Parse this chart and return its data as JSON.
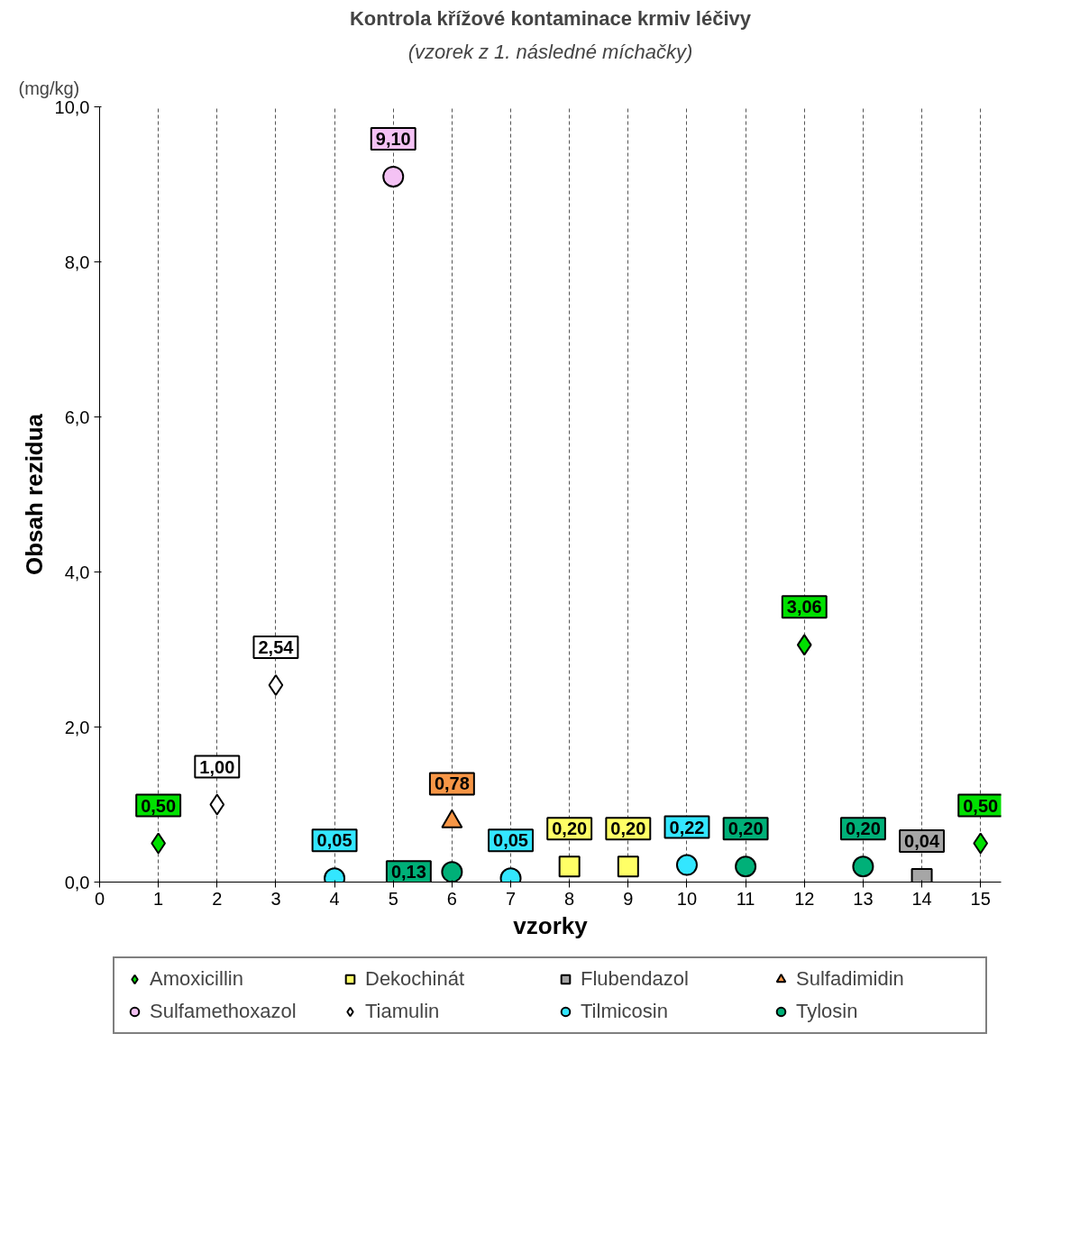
{
  "chart_data": {
    "type": "scatter",
    "title": "Kontrola křížové kontaminace krmiv léčivy",
    "subtitle": "(vzorek z 1. následné míchačky)",
    "xlabel": "vzorky",
    "ylabel": "Obsah rezidua",
    "annotations": [
      "(mg/kg)"
    ],
    "xlim": [
      0,
      15.35
    ],
    "xticks": [
      0,
      1,
      2,
      3,
      4,
      5,
      6,
      7,
      8,
      9,
      10,
      11,
      12,
      13,
      14,
      15
    ],
    "ylim": [
      0,
      10
    ],
    "yticks": [
      {
        "value": 0,
        "label": "0,0"
      },
      {
        "value": 2,
        "label": "2,0"
      },
      {
        "value": 4,
        "label": "4,0"
      },
      {
        "value": 6,
        "label": "6,0"
      },
      {
        "value": 8,
        "label": "8,0"
      },
      {
        "value": 10,
        "label": "10,0"
      }
    ],
    "grid": "x",
    "legend": "bottom",
    "series": [
      {
        "name": "Amoxicillin",
        "color": "#00e000",
        "marker": "diamond",
        "x": [
          1,
          12,
          15
        ],
        "values": [
          0.5,
          3.06,
          0.5
        ],
        "value_labels": [
          "0,50",
          "3,06",
          "0,50"
        ]
      },
      {
        "name": "Dekochinát",
        "color": "#ffff66",
        "marker": "square",
        "x": [
          8,
          9
        ],
        "values": [
          0.2,
          0.2
        ],
        "value_labels": [
          "0,20",
          "0,20"
        ]
      },
      {
        "name": "Flubendazol",
        "color": "#a6a6a6",
        "marker": "square",
        "x": [
          14
        ],
        "values": [
          0.04
        ],
        "value_labels": [
          "0,04"
        ]
      },
      {
        "name": "Sulfadimidin",
        "color": "#f79646",
        "marker": "triangle",
        "x": [
          6
        ],
        "values": [
          0.78
        ],
        "value_labels": [
          "0,78"
        ]
      },
      {
        "name": "Sulfamethoxazol",
        "color": "#f4c2f4",
        "marker": "circle",
        "x": [
          5
        ],
        "values": [
          9.1
        ],
        "value_labels": [
          "9,10"
        ]
      },
      {
        "name": "Tiamulin",
        "color": "#ffffff",
        "marker": "diamond",
        "x": [
          2,
          3
        ],
        "values": [
          1.0,
          2.54
        ],
        "value_labels": [
          "1,00",
          "2,54"
        ]
      },
      {
        "name": "Tilmicosin",
        "color": "#33e6ff",
        "marker": "circle",
        "x": [
          4,
          7,
          10
        ],
        "values": [
          0.05,
          0.05,
          0.22
        ],
        "value_labels": [
          "0,05",
          "0,05",
          "0,22"
        ]
      },
      {
        "name": "Tylosin",
        "color": "#00b078",
        "marker": "circle",
        "x": [
          6,
          11,
          13
        ],
        "values": [
          0.13,
          0.2,
          0.2
        ],
        "value_labels": [
          "0,13",
          "0,20",
          "0,20"
        ]
      }
    ]
  }
}
